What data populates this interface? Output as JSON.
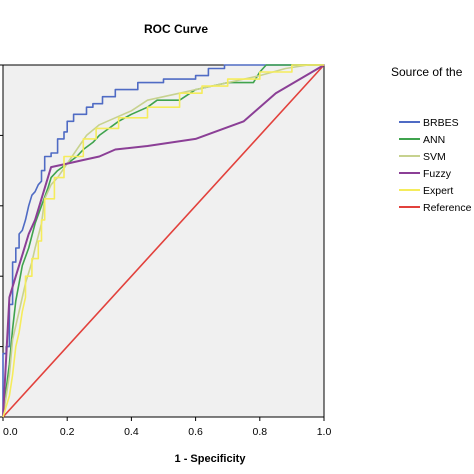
{
  "chart_data": {
    "type": "line",
    "title": "ROC Curve",
    "xlabel": "1 - Specificity",
    "ylabel": "",
    "xlim": [
      0,
      1
    ],
    "ylim": [
      0,
      1
    ],
    "x_ticks": [
      "0.0",
      "0.2",
      "0.4",
      "0.6",
      "0.8",
      "1.0"
    ],
    "grid": false,
    "plot_background": "#f0f0f0",
    "legend": {
      "title": "Source of the",
      "placement": "right"
    },
    "series": [
      {
        "name": "BRBES",
        "color": "#4f6bc4",
        "x": [
          0,
          0,
          0.01,
          0.01,
          0.02,
          0.02,
          0.03,
          0.03,
          0.04,
          0.04,
          0.05,
          0.05,
          0.06,
          0.07,
          0.08,
          0.09,
          0.1,
          0.11,
          0.12,
          0.12,
          0.13,
          0.13,
          0.15,
          0.15,
          0.17,
          0.17,
          0.19,
          0.19,
          0.2,
          0.2,
          0.22,
          0.22,
          0.26,
          0.26,
          0.28,
          0.28,
          0.31,
          0.31,
          0.35,
          0.35,
          0.42,
          0.42,
          0.5,
          0.5,
          0.6,
          0.6,
          0.64,
          0.64,
          0.69,
          0.69,
          0.75,
          0.75,
          1
        ],
        "y": [
          0,
          0.18,
          0.18,
          0.2,
          0.2,
          0.32,
          0.32,
          0.44,
          0.44,
          0.48,
          0.48,
          0.52,
          0.53,
          0.56,
          0.6,
          0.63,
          0.64,
          0.66,
          0.67,
          0.7,
          0.7,
          0.74,
          0.74,
          0.75,
          0.75,
          0.79,
          0.79,
          0.81,
          0.81,
          0.84,
          0.84,
          0.86,
          0.86,
          0.88,
          0.88,
          0.89,
          0.89,
          0.91,
          0.91,
          0.93,
          0.93,
          0.95,
          0.95,
          0.96,
          0.96,
          0.97,
          0.97,
          0.99,
          0.99,
          1,
          1,
          1,
          1
        ]
      },
      {
        "name": "ANN",
        "color": "#3fa34d",
        "x": [
          0,
          0.01,
          0.02,
          0.03,
          0.04,
          0.05,
          0.06,
          0.08,
          0.1,
          0.12,
          0.14,
          0.15,
          0.17,
          0.2,
          0.23,
          0.25,
          0.28,
          0.3,
          0.33,
          0.36,
          0.4,
          0.45,
          0.48,
          0.55,
          0.6,
          0.7,
          0.78,
          0.8,
          0.82,
          0.85,
          0.9,
          1
        ],
        "y": [
          0,
          0.08,
          0.15,
          0.25,
          0.33,
          0.38,
          0.43,
          0.48,
          0.55,
          0.6,
          0.65,
          0.68,
          0.7,
          0.72,
          0.74,
          0.76,
          0.78,
          0.8,
          0.82,
          0.84,
          0.86,
          0.88,
          0.9,
          0.9,
          0.93,
          0.95,
          0.95,
          0.98,
          1,
          1,
          1,
          1
        ]
      },
      {
        "name": "SVM",
        "color": "#c7d28f",
        "x": [
          0,
          0.02,
          0.03,
          0.05,
          0.07,
          0.09,
          0.1,
          0.12,
          0.13,
          0.15,
          0.17,
          0.2,
          0.23,
          0.26,
          0.3,
          0.35,
          0.4,
          0.45,
          0.5,
          0.55,
          0.6,
          0.65,
          0.7,
          0.75,
          0.8,
          0.88,
          0.95,
          1
        ],
        "y": [
          0,
          0.12,
          0.22,
          0.3,
          0.38,
          0.44,
          0.48,
          0.55,
          0.62,
          0.66,
          0.68,
          0.72,
          0.76,
          0.8,
          0.83,
          0.85,
          0.87,
          0.9,
          0.91,
          0.92,
          0.93,
          0.94,
          0.95,
          0.96,
          0.97,
          0.99,
          1,
          1
        ]
      },
      {
        "name": "Fuzzy",
        "color": "#8b3f96",
        "x": [
          0,
          0.02,
          0.04,
          0.06,
          0.08,
          0.1,
          0.12,
          0.14,
          0.15,
          0.2,
          0.25,
          0.3,
          0.35,
          0.45,
          0.6,
          0.75,
          0.85,
          1
        ],
        "y": [
          0,
          0.34,
          0.4,
          0.46,
          0.52,
          0.56,
          0.62,
          0.68,
          0.71,
          0.72,
          0.73,
          0.74,
          0.76,
          0.77,
          0.79,
          0.84,
          0.92,
          1
        ]
      },
      {
        "name": "Expert",
        "color": "#f5ec5b",
        "x": [
          0,
          0.02,
          0.03,
          0.04,
          0.05,
          0.06,
          0.07,
          0.07,
          0.09,
          0.09,
          0.11,
          0.11,
          0.12,
          0.12,
          0.13,
          0.13,
          0.16,
          0.16,
          0.19,
          0.19,
          0.25,
          0.25,
          0.29,
          0.29,
          0.36,
          0.36,
          0.45,
          0.45,
          0.55,
          0.55,
          0.62,
          0.62,
          0.7,
          0.7,
          0.8,
          0.8,
          0.9,
          0.9,
          1
        ],
        "y": [
          0,
          0.06,
          0.12,
          0.2,
          0.24,
          0.3,
          0.34,
          0.4,
          0.4,
          0.45,
          0.45,
          0.5,
          0.5,
          0.56,
          0.56,
          0.62,
          0.62,
          0.68,
          0.68,
          0.74,
          0.74,
          0.79,
          0.79,
          0.82,
          0.82,
          0.85,
          0.85,
          0.88,
          0.88,
          0.92,
          0.92,
          0.94,
          0.94,
          0.96,
          0.96,
          0.98,
          0.98,
          1,
          1
        ]
      },
      {
        "name": "Reference",
        "color": "#e2413c",
        "x": [
          0,
          1
        ],
        "y": [
          0,
          1
        ]
      }
    ]
  }
}
